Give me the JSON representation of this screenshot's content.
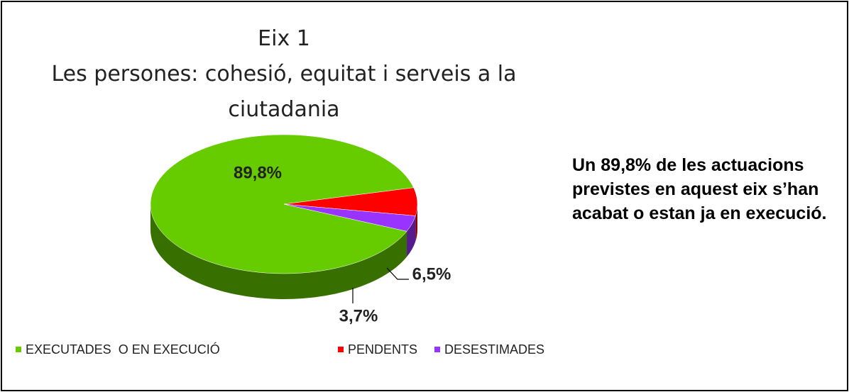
{
  "chart_data": {
    "type": "pie",
    "title": "Eix 1",
    "subtitle": "Les persones: cohesió, equitat i serveis a la ciutadania",
    "categories": [
      "EXECUTADES  O EN EXECUCIÓ",
      "PENDENTS",
      "DESESTIMADES"
    ],
    "values": [
      89.8,
      6.5,
      3.7
    ],
    "value_labels": [
      "89,8%",
      "6,5%",
      "3,7%"
    ],
    "colors": [
      "#66cc00",
      "#ff0000",
      "#9933ff"
    ],
    "legend": "bottom",
    "annotation": "Un 89,8% de les actuacions previstes en aquest eix s’han acabat o estan ja en execució."
  }
}
